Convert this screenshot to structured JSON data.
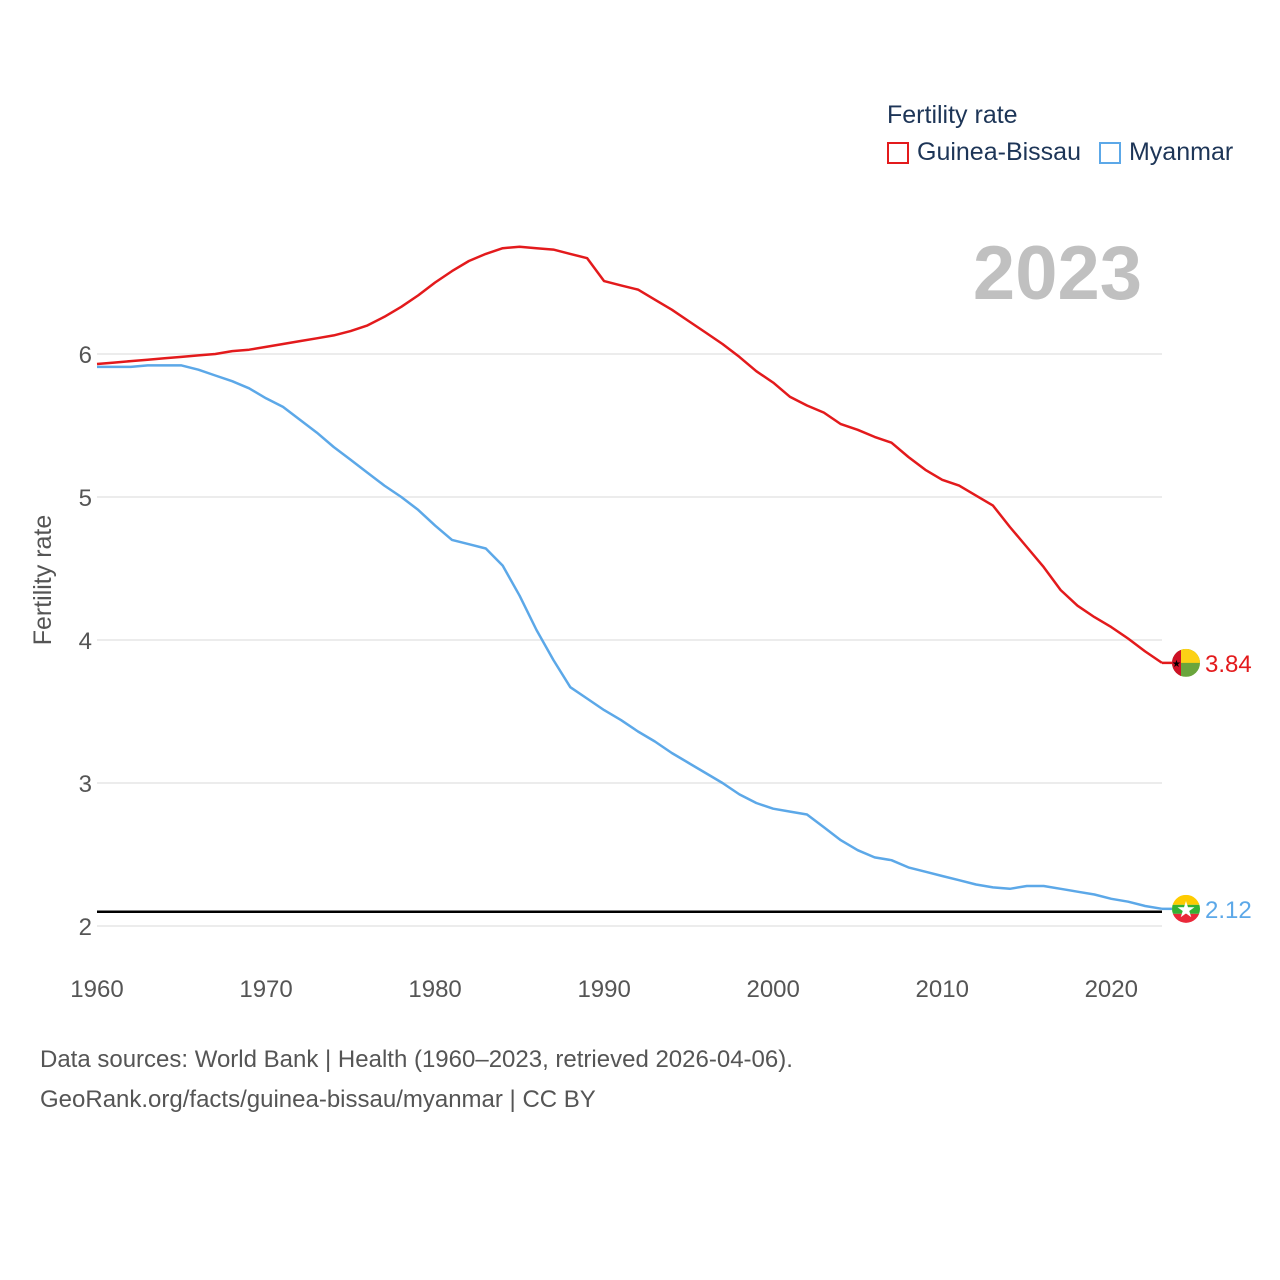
{
  "legend": {
    "title": "Fertility rate",
    "items": [
      {
        "name": "Guinea-Bissau",
        "color": "#e31a1c"
      },
      {
        "name": "Myanmar",
        "color": "#5ca8e8"
      }
    ]
  },
  "year_label": "2023",
  "sources": {
    "line1": "Data sources: World Bank | Health (1960–2023, retrieved 2026-04-06).",
    "line2": "GeoRank.org/facts/guinea-bissau/myanmar | CC BY"
  },
  "chart_data": {
    "type": "line",
    "title": "",
    "xlabel": "",
    "ylabel": "Fertility rate",
    "xlim": [
      1960,
      2023
    ],
    "ylim": [
      1.9,
      6.95
    ],
    "xticks": [
      "1960",
      "1970",
      "1980",
      "1990",
      "2000",
      "2010",
      "2020"
    ],
    "yticks": [
      "2",
      "3",
      "4",
      "5",
      "6"
    ],
    "reference_line": {
      "y": 2.1,
      "color": "#000000"
    },
    "x": [
      1960,
      1961,
      1962,
      1963,
      1964,
      1965,
      1966,
      1967,
      1968,
      1969,
      1970,
      1971,
      1972,
      1973,
      1974,
      1975,
      1976,
      1977,
      1978,
      1979,
      1980,
      1981,
      1982,
      1983,
      1984,
      1985,
      1986,
      1987,
      1988,
      1989,
      1990,
      1991,
      1992,
      1993,
      1994,
      1995,
      1996,
      1997,
      1998,
      1999,
      2000,
      2001,
      2002,
      2003,
      2004,
      2005,
      2006,
      2007,
      2008,
      2009,
      2010,
      2011,
      2012,
      2013,
      2014,
      2015,
      2016,
      2017,
      2018,
      2019,
      2020,
      2021,
      2022,
      2023
    ],
    "series": [
      {
        "name": "Guinea-Bissau",
        "color": "#e31a1c",
        "end_label": "3.84",
        "values": [
          5.93,
          5.94,
          5.95,
          5.96,
          5.97,
          5.98,
          5.99,
          6.0,
          6.02,
          6.03,
          6.05,
          6.07,
          6.09,
          6.11,
          6.13,
          6.16,
          6.2,
          6.26,
          6.33,
          6.41,
          6.5,
          6.58,
          6.65,
          6.7,
          6.74,
          6.75,
          6.74,
          6.73,
          6.7,
          6.67,
          6.51,
          6.48,
          6.45,
          6.38,
          6.31,
          6.23,
          6.15,
          6.07,
          5.98,
          5.88,
          5.8,
          5.7,
          5.64,
          5.59,
          5.51,
          5.47,
          5.42,
          5.38,
          5.28,
          5.19,
          5.12,
          5.08,
          5.01,
          4.94,
          4.79,
          4.65,
          4.51,
          4.35,
          4.24,
          4.16,
          4.09,
          4.01,
          3.92,
          3.84
        ]
      },
      {
        "name": "Myanmar",
        "color": "#5ca8e8",
        "end_label": "2.12",
        "values": [
          5.91,
          5.91,
          5.91,
          5.92,
          5.92,
          5.92,
          5.89,
          5.85,
          5.81,
          5.76,
          5.69,
          5.63,
          5.54,
          5.45,
          5.35,
          5.26,
          5.17,
          5.08,
          5.0,
          4.91,
          4.8,
          4.7,
          4.67,
          4.64,
          4.52,
          4.31,
          4.07,
          3.86,
          3.67,
          3.59,
          3.51,
          3.44,
          3.36,
          3.29,
          3.21,
          3.14,
          3.07,
          3.0,
          2.92,
          2.86,
          2.82,
          2.8,
          2.78,
          2.69,
          2.6,
          2.53,
          2.48,
          2.46,
          2.41,
          2.38,
          2.35,
          2.32,
          2.29,
          2.27,
          2.26,
          2.28,
          2.28,
          2.26,
          2.24,
          2.22,
          2.19,
          2.17,
          2.14,
          2.12
        ]
      }
    ]
  }
}
